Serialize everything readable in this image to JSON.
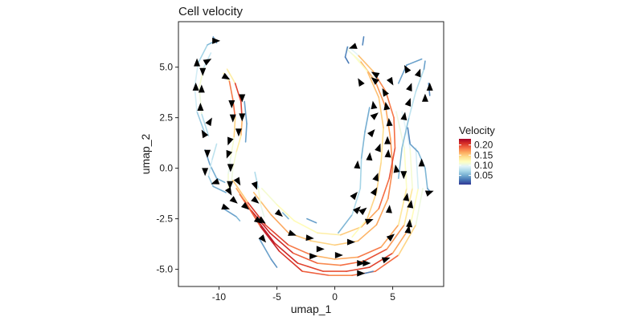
{
  "chart_data": {
    "type": "line",
    "subtype": "velocity streamlines",
    "title": "Cell velocity",
    "xlabel": "umap_1",
    "ylabel": "umap_2",
    "xlim": [
      -13.5,
      9.4
    ],
    "ylim": [
      -5.85,
      7.25
    ],
    "xticks": [
      -10,
      -5,
      0,
      5
    ],
    "xtick_labels": [
      "-10",
      "-5",
      "0",
      "5"
    ],
    "yticks": [
      -5,
      -2.5,
      0,
      2.5,
      5
    ],
    "ytick_labels": [
      "-5.0",
      "-2.5",
      "0.0",
      "2.5",
      "5.0"
    ],
    "grid": false,
    "legend": {
      "title": "Velocity",
      "placement": "right",
      "range": [
        0.005,
        0.23
      ],
      "ticks": [
        0.05,
        0.1,
        0.15,
        0.2
      ],
      "tick_labels": [
        "0.05",
        "0.10",
        "0.15",
        "0.20"
      ],
      "colormap": [
        "#313695",
        "#4575b4",
        "#74add1",
        "#abd9e9",
        "#e0f3f8",
        "#ffffbf",
        "#fee090",
        "#fdae61",
        "#f46d43",
        "#d73027",
        "#a50026"
      ]
    },
    "arrow_color": "#000000",
    "streamlines": [
      [
        [
          -8.8,
          -0.6,
          0.1
        ],
        [
          -7.5,
          -1.7,
          0.2
        ],
        [
          -6,
          -2.8,
          0.21
        ],
        [
          -4,
          -3.8,
          0.19
        ],
        [
          -2,
          -4.3,
          0.17
        ],
        [
          0,
          -4.5,
          0.15
        ],
        [
          2,
          -4.4,
          0.18
        ],
        [
          4,
          -3.9,
          0.18
        ],
        [
          5.5,
          -2.8,
          0.15
        ],
        [
          6.2,
          -1,
          0.12
        ],
        [
          6,
          1,
          0.11
        ],
        [
          5.3,
          2.8,
          0.1
        ]
      ],
      [
        [
          -8.5,
          -1.0,
          0.12
        ],
        [
          -7.2,
          -2.1,
          0.21
        ],
        [
          -5.6,
          -3.2,
          0.22
        ],
        [
          -3.6,
          -4.2,
          0.2
        ],
        [
          -1.5,
          -4.7,
          0.18
        ],
        [
          0.5,
          -4.8,
          0.17
        ],
        [
          2.5,
          -4.6,
          0.2
        ],
        [
          4.5,
          -4,
          0.19
        ],
        [
          6,
          -2.8,
          0.15
        ],
        [
          6.7,
          -1,
          0.12
        ],
        [
          6.5,
          1,
          0.1
        ],
        [
          5.8,
          2.8,
          0.09
        ]
      ],
      [
        [
          -8.2,
          -1.3,
          0.14
        ],
        [
          -6.8,
          -2.5,
          0.22
        ],
        [
          -5.2,
          -3.7,
          0.22
        ],
        [
          -3.2,
          -4.7,
          0.2
        ],
        [
          -1,
          -5.1,
          0.2
        ],
        [
          1,
          -5.1,
          0.19
        ],
        [
          3,
          -4.9,
          0.21
        ],
        [
          5,
          -4.2,
          0.19
        ],
        [
          6.5,
          -2.9,
          0.14
        ],
        [
          7.2,
          -1,
          0.1
        ],
        [
          7,
          1,
          0.08
        ]
      ],
      [
        [
          -7.8,
          -1.6,
          0.16
        ],
        [
          -6.4,
          -2.9,
          0.22
        ],
        [
          -4.8,
          -4.1,
          0.21
        ],
        [
          -2.8,
          -5.1,
          0.2
        ],
        [
          -0.5,
          -5.3,
          0.18
        ],
        [
          1.5,
          -5.3,
          0.17
        ],
        [
          3.5,
          -5.1,
          0.2
        ],
        [
          5.5,
          -4.3,
          0.17
        ],
        [
          7,
          -2.8,
          0.12
        ],
        [
          7.6,
          -1,
          0.09
        ]
      ],
      [
        [
          -7,
          -1.2,
          0.14
        ],
        [
          -5.5,
          -2.3,
          0.17
        ],
        [
          -4,
          -3.2,
          0.16
        ],
        [
          -2,
          -3.6,
          0.15
        ],
        [
          0,
          -3.8,
          0.14
        ],
        [
          2,
          -3.6,
          0.16
        ],
        [
          3.6,
          -2.8,
          0.16
        ],
        [
          4.6,
          -1.5,
          0.17
        ],
        [
          5,
          0,
          0.18
        ],
        [
          4.8,
          1.5,
          0.16
        ],
        [
          4.4,
          3,
          0.17
        ],
        [
          3.5,
          4.3,
          0.17
        ],
        [
          2.2,
          5.3,
          0.15
        ],
        [
          1,
          5.9,
          0.06
        ]
      ],
      [
        [
          -6.3,
          -1.0,
          0.1
        ],
        [
          -5,
          -1.8,
          0.12
        ],
        [
          -3.5,
          -2.6,
          0.12
        ],
        [
          -1.5,
          -3.2,
          0.12
        ],
        [
          0.5,
          -3.3,
          0.14
        ],
        [
          2.3,
          -2.9,
          0.16
        ],
        [
          3.8,
          -2,
          0.17
        ],
        [
          4.7,
          -0.5,
          0.2
        ],
        [
          5.2,
          1,
          0.19
        ],
        [
          5.1,
          2.5,
          0.18
        ],
        [
          4.4,
          3.8,
          0.18
        ],
        [
          3.3,
          4.8,
          0.17
        ],
        [
          2,
          5.6,
          0.14
        ],
        [
          1.2,
          6.0,
          0.05
        ]
      ],
      [
        [
          1.5,
          -3.4,
          0.1
        ],
        [
          2.8,
          -2.5,
          0.14
        ],
        [
          3.6,
          -1.2,
          0.15
        ],
        [
          4,
          0.3,
          0.14
        ],
        [
          4.2,
          2,
          0.14
        ],
        [
          3.8,
          3.5,
          0.16
        ],
        [
          2.8,
          4.8,
          0.15
        ],
        [
          1.6,
          5.6,
          0.08
        ]
      ],
      [
        [
          0.3,
          -3.2,
          0.04
        ],
        [
          1.5,
          -2.3,
          0.07
        ],
        [
          2.2,
          -1,
          0.08
        ],
        [
          2.3,
          0.5,
          0.06
        ],
        [
          2.6,
          1.8,
          0.05
        ],
        [
          3,
          3,
          0.05
        ]
      ],
      [
        [
          5.5,
          -0.5,
          0.06
        ],
        [
          5.8,
          1,
          0.05
        ],
        [
          6.4,
          2.5,
          0.07
        ],
        [
          7,
          3.8,
          0.09
        ],
        [
          7.7,
          4.9,
          0.06
        ],
        [
          7.8,
          5.3,
          0.03
        ]
      ],
      [
        [
          6.3,
          2,
          0.03
        ],
        [
          6.5,
          1.2,
          0.04
        ],
        [
          7.2,
          0.8,
          0.05
        ],
        [
          7.8,
          0,
          0.06
        ],
        [
          8,
          -1,
          0.05
        ],
        [
          8.3,
          -1.2,
          0.04
        ]
      ],
      [
        [
          5.5,
          4.2,
          0.04
        ],
        [
          6.2,
          5.1,
          0.05
        ],
        [
          7.5,
          5.4,
          0.04
        ]
      ],
      [
        [
          8.2,
          3.6,
          0.03
        ],
        [
          8.1,
          4.2,
          0.04
        ]
      ],
      [
        [
          -11.2,
          1.7,
          0.05
        ],
        [
          -11.9,
          2.8,
          0.08
        ],
        [
          -12.1,
          4,
          0.1
        ],
        [
          -11.8,
          5.2,
          0.08
        ],
        [
          -11,
          6.1,
          0.06
        ],
        [
          -10.3,
          6.3,
          0.05
        ]
      ],
      [
        [
          -10.9,
          1.6,
          0.06
        ],
        [
          -11.5,
          2.7,
          0.09
        ],
        [
          -11.7,
          4,
          0.12
        ],
        [
          -11.3,
          5,
          0.1
        ],
        [
          -10.7,
          5.7,
          0.07
        ]
      ],
      [
        [
          -11.2,
          0.9,
          0.04
        ],
        [
          -10.8,
          0.2,
          0.05
        ],
        [
          -10.2,
          -0.5,
          0.05
        ],
        [
          -9.5,
          -0.7,
          0.06
        ]
      ],
      [
        [
          -9.6,
          4.7,
          0.1
        ],
        [
          -9.1,
          4.3,
          0.16
        ],
        [
          -8.8,
          3.4,
          0.2
        ],
        [
          -8.6,
          2.5,
          0.17
        ],
        [
          -8.7,
          1.5,
          0.12
        ],
        [
          -9,
          0.5,
          0.1
        ],
        [
          -9.2,
          -0.3,
          0.1
        ],
        [
          -9.2,
          -1,
          0.12
        ]
      ],
      [
        [
          -9.3,
          4.9,
          0.08
        ],
        [
          -8.6,
          4.2,
          0.18
        ],
        [
          -8.1,
          3.3,
          0.22
        ],
        [
          -8,
          2.4,
          0.18
        ],
        [
          -8.1,
          1.6,
          0.14
        ],
        [
          -8.5,
          0.8,
          0.12
        ],
        [
          -8.8,
          0,
          0.1
        ],
        [
          -8.9,
          -0.6,
          0.11
        ]
      ],
      [
        [
          -10.2,
          1.2,
          0.06
        ],
        [
          -10.6,
          0.4,
          0.1
        ],
        [
          -10.9,
          -0.4,
          0.08
        ],
        [
          -10.5,
          -0.9,
          0.05
        ],
        [
          -9.4,
          -1.2,
          0.05
        ]
      ],
      [
        [
          -7.8,
          3.3,
          0.04
        ],
        [
          -7.6,
          2.2,
          0.05
        ],
        [
          -7.7,
          1.3,
          0.04
        ]
      ],
      [
        [
          -6.9,
          -0.2,
          0.05
        ],
        [
          -6.6,
          -1.0,
          0.1
        ],
        [
          -6.4,
          -1.8,
          0.12
        ],
        [
          -6.1,
          -2.4,
          0.08
        ]
      ],
      [
        [
          -9.6,
          -2,
          0.04
        ],
        [
          -8.5,
          -2.4,
          0.05
        ],
        [
          -8.2,
          -2.6,
          0.06
        ]
      ],
      [
        [
          -2.4,
          -2.5,
          0.05
        ],
        [
          -1.6,
          -2.7,
          0.04
        ]
      ],
      [
        [
          -4.5,
          -2.2,
          0.05
        ],
        [
          -4,
          -2.5,
          0.06
        ]
      ],
      [
        [
          -6.5,
          -3.5,
          0.05
        ],
        [
          -5.5,
          -4.5,
          0.04
        ],
        [
          -5,
          -4.9,
          0.04
        ]
      ],
      [
        [
          2.6,
          -5.2,
          0.04
        ],
        [
          3.3,
          -5.1,
          0.03
        ]
      ],
      [
        [
          2.5,
          6.5,
          0.03
        ],
        [
          2.4,
          6.1,
          0.04
        ]
      ],
      [
        [
          1.1,
          6.0,
          0.04
        ],
        [
          0.9,
          5.5,
          0.03
        ],
        [
          1.2,
          5.2,
          0.03
        ]
      ],
      [
        [
          -10.5,
          6.5,
          0.04
        ],
        [
          -10.2,
          6.2,
          0.05
        ]
      ]
    ],
    "arrows": [
      [
        -10.3,
        6.3,
        0
      ],
      [
        -11.9,
        5.2,
        90
      ],
      [
        -11.0,
        5.3,
        30
      ],
      [
        -11.4,
        4.8,
        270
      ],
      [
        -12.0,
        4.0,
        90
      ],
      [
        -11.5,
        3.9,
        90
      ],
      [
        -11.6,
        3.0,
        90
      ],
      [
        -10.8,
        2.3,
        60
      ],
      [
        -11.3,
        1.7,
        120
      ],
      [
        -9.4,
        4.5,
        -30
      ],
      [
        -8.9,
        3.2,
        270
      ],
      [
        -8.0,
        3.5,
        270
      ],
      [
        -8.8,
        2.5,
        270
      ],
      [
        -8.0,
        2.55,
        270
      ],
      [
        -8.3,
        1.8,
        270
      ],
      [
        -9.1,
        1.35,
        250
      ],
      [
        -9.2,
        0.7,
        250
      ],
      [
        -11.0,
        0.75,
        270
      ],
      [
        -9.0,
        0.05,
        270
      ],
      [
        -11.2,
        -0.15,
        270
      ],
      [
        -10.3,
        -0.7,
        200
      ],
      [
        -9.05,
        -0.8,
        270
      ],
      [
        -8.35,
        -0.65,
        -60
      ],
      [
        -9.1,
        -1.15,
        -60
      ],
      [
        -8.7,
        -1.6,
        -40
      ],
      [
        -9.45,
        -1.95,
        -20
      ],
      [
        -7.7,
        -1.9,
        -40
      ],
      [
        -6.85,
        -0.85,
        -70
      ],
      [
        -6.85,
        -1.6,
        -40
      ],
      [
        -6.3,
        -2.6,
        -35
      ],
      [
        -6.6,
        -2.6,
        -35
      ],
      [
        -6.2,
        -3.5,
        -50
      ],
      [
        -4.8,
        -2.25,
        -40
      ],
      [
        -3.7,
        -3.25,
        -20
      ],
      [
        -2.2,
        -3.45,
        -5
      ],
      [
        -1.3,
        -4.0,
        0
      ],
      [
        -1.9,
        -4.35,
        0
      ],
      [
        0.3,
        -4.3,
        0
      ],
      [
        1.35,
        -3.65,
        0
      ],
      [
        2.95,
        -2.6,
        20
      ],
      [
        1.95,
        -2.05,
        45
      ],
      [
        2.45,
        -2.1,
        40
      ],
      [
        1.7,
        -1.35,
        50
      ],
      [
        3.45,
        -1.15,
        60
      ],
      [
        3.6,
        -0.45,
        70
      ],
      [
        1.95,
        0.15,
        85
      ],
      [
        3.0,
        0.55,
        85
      ],
      [
        3.8,
        1.0,
        70
      ],
      [
        3.2,
        1.75,
        50
      ],
      [
        3.45,
        2.6,
        40
      ],
      [
        3.35,
        3.1,
        100
      ],
      [
        2.2,
        4.25,
        120
      ],
      [
        3.45,
        4.35,
        140
      ],
      [
        3.5,
        4.65,
        150
      ],
      [
        4.3,
        3.75,
        120
      ],
      [
        4.85,
        4.3,
        -60
      ],
      [
        4.45,
        3.05,
        100
      ],
      [
        4.7,
        2.25,
        95
      ],
      [
        4.55,
        1.35,
        90
      ],
      [
        4.6,
        0.7,
        85
      ],
      [
        5.3,
        -0.05,
        100
      ],
      [
        5.95,
        -0.3,
        270
      ],
      [
        6.2,
        -1.45,
        80
      ],
      [
        6.55,
        -1.8,
        80
      ],
      [
        4.7,
        -2.05,
        85
      ],
      [
        6.45,
        -2.75,
        85
      ],
      [
        6.35,
        -3.05,
        80
      ],
      [
        4.85,
        -3.4,
        40
      ],
      [
        4.4,
        -4.5,
        20
      ],
      [
        2.2,
        -4.7,
        0
      ],
      [
        2.7,
        -4.7,
        0
      ],
      [
        2.2,
        -5.2,
        0
      ],
      [
        1.6,
        6.0,
        200
      ],
      [
        6.2,
        4.9,
        120
      ],
      [
        7.25,
        4.7,
        70
      ],
      [
        6.5,
        4.0,
        70
      ],
      [
        6.4,
        3.25,
        70
      ],
      [
        8.2,
        4.0,
        90
      ],
      [
        7.8,
        3.45,
        90
      ],
      [
        6.0,
        2.55,
        80
      ],
      [
        7.5,
        0.25,
        90
      ],
      [
        8.15,
        -1.2,
        20
      ]
    ]
  }
}
